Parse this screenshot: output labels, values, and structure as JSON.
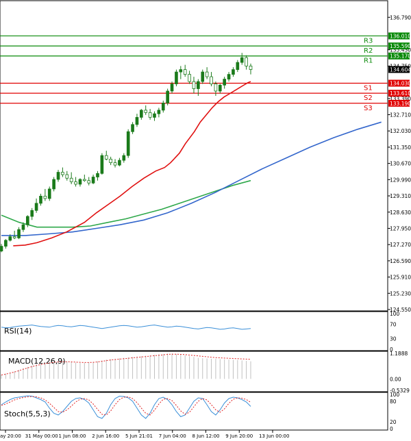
{
  "chart_data": {
    "type": "candlestick",
    "symbol_context": "Forex daily chart with support/resistance and indicators",
    "colors": {
      "bull": "#1a7a1a",
      "bear": "#ffffff",
      "wick": "#1a7a1a",
      "resistance": "#0a8a0a",
      "support": "#e00000",
      "sma_fast": "#e01010",
      "sma_mid": "#3366cc",
      "sma_slow": "#2ea84a",
      "rsi": "#3a8fd8",
      "macd_hist": "#c0c0c0",
      "macd_signal": "#e02020",
      "stoch_k": "#3a8fd8",
      "stoch_d": "#e02020",
      "current_price_bg": "#000000"
    },
    "y_axis": {
      "min": 124.55,
      "max": 137.4,
      "ticks": [
        "136.790",
        "135.430",
        "134.750",
        "133.390",
        "132.710",
        "132.030",
        "131.350",
        "130.670",
        "129.990",
        "129.310",
        "128.630",
        "127.950",
        "127.270",
        "126.590",
        "125.910",
        "125.230",
        "124.550"
      ]
    },
    "levels": {
      "resistance": [
        {
          "name": "R3",
          "value": "136.010"
        },
        {
          "name": "R2",
          "value": "135.590"
        },
        {
          "name": "R1",
          "value": "135.170"
        }
      ],
      "support": [
        {
          "name": "S1",
          "value": "134.030"
        },
        {
          "name": "S2",
          "value": "133.610"
        },
        {
          "name": "S3",
          "value": "133.190"
        }
      ],
      "current_price": "134.604"
    },
    "x_labels": [
      "ay 20:00",
      "31 May 00:00",
      "1 Jun 08:00",
      "2 Jun 16:00",
      "5 Jun 21:01",
      "7 Jun 04:00",
      "8 Jun 12:00",
      "9 Jun 20:00",
      "13 Jun 00:00"
    ],
    "candles": [
      [
        127.0,
        127.3,
        126.95,
        127.2
      ],
      [
        127.2,
        127.5,
        127.1,
        127.45
      ],
      [
        127.45,
        127.7,
        127.4,
        127.6
      ],
      [
        127.6,
        127.85,
        127.5,
        127.55
      ],
      [
        127.55,
        128.0,
        127.5,
        127.9
      ],
      [
        127.9,
        128.2,
        127.8,
        128.1
      ],
      [
        128.1,
        128.5,
        128.0,
        128.45
      ],
      [
        128.45,
        128.8,
        128.3,
        128.7
      ],
      [
        128.7,
        129.2,
        128.6,
        129.0
      ],
      [
        129.0,
        129.4,
        128.9,
        129.3
      ],
      [
        129.3,
        129.6,
        129.1,
        129.2
      ],
      [
        129.2,
        129.7,
        129.1,
        129.6
      ],
      [
        129.6,
        130.1,
        129.5,
        130.0
      ],
      [
        130.0,
        130.4,
        129.9,
        130.3
      ],
      [
        130.3,
        130.5,
        130.1,
        130.2
      ],
      [
        130.2,
        130.35,
        129.95,
        130.05
      ],
      [
        130.05,
        130.3,
        129.8,
        129.9
      ],
      [
        129.9,
        130.1,
        129.7,
        129.8
      ],
      [
        129.8,
        130.05,
        129.7,
        130.0
      ],
      [
        130.0,
        130.2,
        129.9,
        129.95
      ],
      [
        129.95,
        130.1,
        129.75,
        129.85
      ],
      [
        129.85,
        130.2,
        129.8,
        130.1
      ],
      [
        130.1,
        130.35,
        129.95,
        130.25
      ],
      [
        130.25,
        131.1,
        130.2,
        131.0
      ],
      [
        131.0,
        131.2,
        130.8,
        130.85
      ],
      [
        130.85,
        130.95,
        130.6,
        130.7
      ],
      [
        130.7,
        130.85,
        130.5,
        130.6
      ],
      [
        130.6,
        130.9,
        130.55,
        130.8
      ],
      [
        130.8,
        131.1,
        130.7,
        131.0
      ],
      [
        131.0,
        132.1,
        130.9,
        132.0
      ],
      [
        132.0,
        132.4,
        131.9,
        132.3
      ],
      [
        132.3,
        132.75,
        132.2,
        132.6
      ],
      [
        132.6,
        132.95,
        132.5,
        132.9
      ],
      [
        132.9,
        133.1,
        132.7,
        132.8
      ],
      [
        132.8,
        132.95,
        132.5,
        132.6
      ],
      [
        132.6,
        132.85,
        132.45,
        132.75
      ],
      [
        132.75,
        133.0,
        132.6,
        132.9
      ],
      [
        132.9,
        133.3,
        132.8,
        133.2
      ],
      [
        133.2,
        133.8,
        133.1,
        133.7
      ],
      [
        133.7,
        134.1,
        133.6,
        134.0
      ],
      [
        134.0,
        134.6,
        133.9,
        134.5
      ],
      [
        134.5,
        134.75,
        134.2,
        134.6
      ],
      [
        134.6,
        134.8,
        134.3,
        134.4
      ],
      [
        134.4,
        134.55,
        134.0,
        134.1
      ],
      [
        134.1,
        134.3,
        133.6,
        133.8
      ],
      [
        133.8,
        134.2,
        133.5,
        134.1
      ],
      [
        134.1,
        134.6,
        134.0,
        134.5
      ],
      [
        134.5,
        134.7,
        134.2,
        134.3
      ],
      [
        134.3,
        134.5,
        133.9,
        134.0
      ],
      [
        134.0,
        134.1,
        133.5,
        133.7
      ],
      [
        133.7,
        134.0,
        133.6,
        133.95
      ],
      [
        133.95,
        134.3,
        133.8,
        134.2
      ],
      [
        134.2,
        134.5,
        134.1,
        134.4
      ],
      [
        134.4,
        134.7,
        134.3,
        134.6
      ],
      [
        134.6,
        135.0,
        134.5,
        134.9
      ],
      [
        134.9,
        135.3,
        134.8,
        135.1
      ],
      [
        135.1,
        135.2,
        134.6,
        134.75
      ],
      [
        134.75,
        134.85,
        134.4,
        134.604
      ]
    ],
    "sma_fast": [
      [
        127.2,
        127.22
      ],
      [
        127.6,
        127.25
      ],
      [
        128.0,
        127.35
      ],
      [
        128.5,
        127.55
      ],
      [
        129.0,
        127.8
      ],
      [
        129.6,
        128.2
      ],
      [
        130.0,
        128.6
      ],
      [
        130.4,
        128.95
      ],
      [
        130.8,
        129.3
      ],
      [
        131.2,
        129.7
      ],
      [
        131.6,
        130.05
      ],
      [
        132.0,
        130.35
      ],
      [
        132.3,
        130.5
      ],
      [
        132.5,
        130.7
      ],
      [
        132.8,
        131.1
      ],
      [
        133.0,
        131.5
      ],
      [
        133.3,
        132.0
      ],
      [
        133.5,
        132.4
      ],
      [
        133.7,
        132.7
      ],
      [
        133.9,
        133.0
      ],
      [
        134.1,
        133.25
      ],
      [
        134.3,
        133.45
      ],
      [
        134.5,
        133.6
      ],
      [
        134.7,
        133.75
      ],
      [
        134.9,
        133.9
      ],
      [
        135.1,
        134.05
      ],
      [
        135.2,
        134.1
      ]
    ],
    "sma_mid": [
      [
        126.8,
        127.65
      ],
      [
        127.6,
        127.65
      ],
      [
        128.4,
        127.72
      ],
      [
        129.2,
        127.8
      ],
      [
        130.0,
        127.95
      ],
      [
        130.8,
        128.1
      ],
      [
        131.6,
        128.3
      ],
      [
        132.4,
        128.6
      ],
      [
        133.2,
        129.0
      ],
      [
        134.0,
        129.45
      ],
      [
        134.8,
        129.95
      ],
      [
        135.6,
        130.45
      ],
      [
        136.4,
        130.9
      ],
      [
        137.2,
        131.35
      ],
      [
        138.0,
        131.75
      ],
      [
        138.8,
        132.1
      ],
      [
        139.6,
        132.4
      ]
    ],
    "sma_slow": [
      [
        126.8,
        128.5
      ],
      [
        127.4,
        128.2
      ],
      [
        128.0,
        128.0
      ],
      [
        128.6,
        128.0
      ],
      [
        129.2,
        128.0
      ],
      [
        129.8,
        128.05
      ],
      [
        130.4,
        128.2
      ],
      [
        131.0,
        128.35
      ],
      [
        131.6,
        128.55
      ],
      [
        132.2,
        128.75
      ],
      [
        132.8,
        129.0
      ],
      [
        133.4,
        129.25
      ],
      [
        134.0,
        129.5
      ],
      [
        134.6,
        129.75
      ],
      [
        135.2,
        129.95
      ]
    ],
    "rsi": {
      "label": "RSI(14)",
      "ticks": [
        "100",
        "70",
        "30",
        "0"
      ],
      "values": [
        62,
        60,
        61,
        63,
        65,
        66,
        67,
        68,
        66,
        64,
        63,
        62,
        65,
        67,
        66,
        64,
        63,
        65,
        67,
        66,
        64,
        62,
        60,
        58,
        60,
        62,
        64,
        66,
        67,
        66,
        64,
        62,
        63,
        65,
        67,
        68,
        66,
        64,
        62,
        63,
        65,
        64,
        62,
        60,
        58,
        57,
        59,
        61,
        60,
        58,
        56,
        57,
        59,
        60,
        58,
        56,
        57,
        58
      ]
    },
    "macd": {
      "label": "MACD(12,26,9)",
      "ticks": [
        "1.1888",
        "0.00",
        "-0.5329"
      ],
      "hist": [
        0.2,
        0.25,
        0.3,
        0.35,
        0.42,
        0.5,
        0.56,
        0.62,
        0.68,
        0.72,
        0.76,
        0.78,
        0.8,
        0.82,
        0.82,
        0.8,
        0.78,
        0.76,
        0.74,
        0.74,
        0.76,
        0.78,
        0.82,
        0.86,
        0.9,
        0.92,
        0.94,
        0.96,
        0.98,
        1.0,
        1.02,
        1.04,
        1.06,
        1.08,
        1.1,
        1.12,
        1.14,
        1.16,
        1.18,
        1.18,
        1.16,
        1.14,
        1.1,
        1.06,
        1.02,
        0.98,
        0.96,
        0.95,
        0.94,
        0.93,
        0.92,
        0.91,
        0.9,
        0.89,
        0.88,
        0.86,
        0.84,
        0.82
      ],
      "signal": [
        0.18,
        0.22,
        0.27,
        0.32,
        0.38,
        0.45,
        0.51,
        0.57,
        0.62,
        0.67,
        0.71,
        0.74,
        0.77,
        0.79,
        0.8,
        0.8,
        0.79,
        0.78,
        0.77,
        0.76,
        0.76,
        0.77,
        0.79,
        0.82,
        0.85,
        0.88,
        0.9,
        0.92,
        0.94,
        0.96,
        0.98,
        1.0,
        1.02,
        1.04,
        1.06,
        1.08,
        1.1,
        1.12,
        1.14,
        1.15,
        1.15,
        1.14,
        1.13,
        1.11,
        1.09,
        1.07,
        1.05,
        1.03,
        1.01,
        0.99,
        0.98,
        0.97,
        0.96,
        0.95,
        0.94,
        0.93,
        0.92,
        0.91
      ]
    },
    "stoch": {
      "label": "Stoch(5,5,3)",
      "ticks": [
        "100",
        "80",
        "20",
        "0"
      ],
      "k": [
        70,
        78,
        85,
        90,
        92,
        94,
        96,
        95,
        90,
        85,
        78,
        60,
        45,
        40,
        50,
        65,
        80,
        88,
        90,
        85,
        75,
        55,
        35,
        30,
        45,
        70,
        88,
        95,
        94,
        90,
        80,
        60,
        40,
        30,
        45,
        70,
        88,
        92,
        85,
        70,
        50,
        35,
        40,
        60,
        80,
        90,
        88,
        70,
        50,
        40,
        55,
        75,
        88,
        92,
        90,
        85,
        78,
        65
      ],
      "d": [
        68,
        72,
        78,
        84,
        88,
        91,
        93,
        94,
        93,
        90,
        84,
        74,
        62,
        50,
        48,
        55,
        66,
        78,
        86,
        88,
        84,
        72,
        56,
        42,
        40,
        52,
        70,
        85,
        92,
        93,
        88,
        76,
        60,
        45,
        40,
        54,
        72,
        86,
        88,
        82,
        68,
        52,
        42,
        48,
        64,
        80,
        88,
        84,
        70,
        55,
        48,
        58,
        74,
        86,
        90,
        89,
        85,
        77
      ]
    }
  }
}
